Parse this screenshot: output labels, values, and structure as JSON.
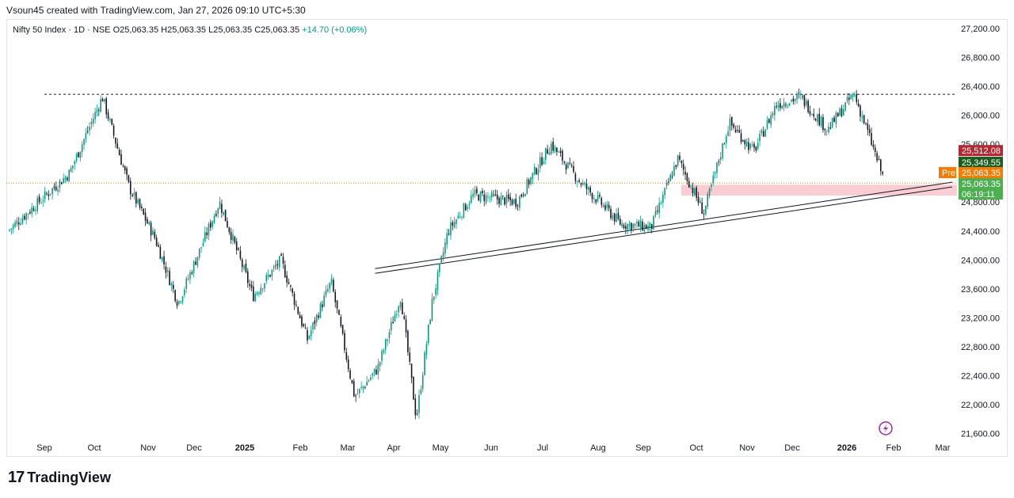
{
  "header": {
    "attribution": "Vsoun45 created with TradingView.com, Jan 27, 2026 09:10 UTC+5:30"
  },
  "legend": {
    "symbol": "Nifty 50 Index · 1D · NSE",
    "o_label": "O",
    "o_value": "25,063.35",
    "h_label": "H",
    "h_value": "25,063.35",
    "l_label": "L",
    "l_value": "25,063.35",
    "c_label": "C",
    "c_value": "25,063.35",
    "change": "+14.70 (+0.06%)"
  },
  "price_tags": {
    "high_tag": "25,512.08",
    "mid_tag": "25,349.55",
    "pre_label": "Pre",
    "pre_value": "25,063.35",
    "last_value": "25,063.35",
    "countdown": "06:19:11"
  },
  "brand": {
    "logo": "17",
    "name": "TradingView"
  },
  "colors": {
    "up": "#089981",
    "down": "#131722",
    "red_tag": "#b22833",
    "green_tag": "#1b5e20",
    "orange_tag": "#f57c00",
    "last_tag": "#4caf50",
    "zone": "#f8c8cd",
    "flash": "#9c27b0"
  },
  "chart_data": {
    "type": "candlestick",
    "y_axis_ticks": [
      "27,200.00",
      "26,800.00",
      "26,400.00",
      "26,000.00",
      "25,600.00",
      "24,800.00",
      "24,400.00",
      "24,000.00",
      "23,600.00",
      "23,200.00",
      "22,800.00",
      "22,400.00",
      "22,000.00",
      "21,600.00"
    ],
    "y_axis_tick_values": [
      27200,
      26800,
      26400,
      26000,
      25600,
      24800,
      24400,
      24000,
      23600,
      23200,
      22800,
      22400,
      22000,
      21600
    ],
    "x_axis_labels": [
      "Sep",
      "Oct",
      "Nov",
      "Dec",
      "2025",
      "Feb",
      "Mar",
      "Apr",
      "May",
      "Jun",
      "Jul",
      "Aug",
      "Sep",
      "Oct",
      "Nov",
      "Dec",
      "2026",
      "Feb",
      "Mar"
    ],
    "bold_x_labels": [
      "2025",
      "2026"
    ],
    "ylim": [
      21500,
      27300
    ],
    "resistance_level": 26290,
    "current_price_level": 25063.35,
    "support_zone": [
      24890,
      25040
    ],
    "trendline_start_month": "Apr 2025",
    "trendline_start_value": 23880,
    "trendline_end_month": "Mar 2026",
    "trendline_end_value": 25075,
    "price_path": [
      {
        "month": "Aug 2024",
        "value": 24400
      },
      {
        "month": "Sep 2024",
        "value": 25200
      },
      {
        "month": "Oct 2024",
        "value": 26250
      },
      {
        "month": "Oct 2024",
        "value": 25000
      },
      {
        "month": "Nov 2024",
        "value": 24300
      },
      {
        "month": "Nov 2024",
        "value": 23400
      },
      {
        "month": "Dec 2024",
        "value": 24800
      },
      {
        "month": "Jan 2025",
        "value": 23500
      },
      {
        "month": "Jan 2025",
        "value": 24000
      },
      {
        "month": "Feb 2025",
        "value": 22900
      },
      {
        "month": "Feb 2025",
        "value": 23700
      },
      {
        "month": "Mar 2025",
        "value": 22100
      },
      {
        "month": "Mar 2025",
        "value": 22500
      },
      {
        "month": "Apr 2025",
        "value": 23500
      },
      {
        "month": "Apr 2025",
        "value": 21800
      },
      {
        "month": "Apr 2025",
        "value": 23400
      },
      {
        "month": "May 2025",
        "value": 24400
      },
      {
        "month": "May 2025",
        "value": 24900
      },
      {
        "month": "Jun 2025",
        "value": 24800
      },
      {
        "month": "Jul 2025",
        "value": 25600
      },
      {
        "month": "Jul 2025",
        "value": 25100
      },
      {
        "month": "Aug 2025",
        "value": 24500
      },
      {
        "month": "Sep 2025",
        "value": 24450
      },
      {
        "month": "Sep 2025",
        "value": 25400
      },
      {
        "month": "Oct 2025",
        "value": 24650
      },
      {
        "month": "Oct 2025",
        "value": 25900
      },
      {
        "month": "Nov 2025",
        "value": 25500
      },
      {
        "month": "Nov 2025",
        "value": 26150
      },
      {
        "month": "Dec 2025",
        "value": 26250
      },
      {
        "month": "Dec 2025",
        "value": 25800
      },
      {
        "month": "Jan 2026",
        "value": 26300
      },
      {
        "month": "Jan 2026",
        "value": 25700
      },
      {
        "month": "Jan 2026",
        "value": 25063
      }
    ]
  }
}
